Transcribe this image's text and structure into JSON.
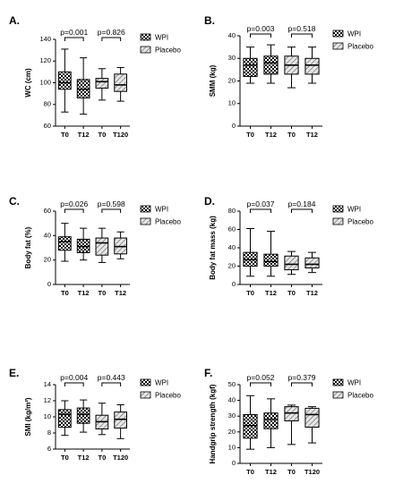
{
  "colors": {
    "wpi": "checker-pattern",
    "placebo": "diagonal-hatch-pattern",
    "axis": "#000000"
  },
  "legend": {
    "wpi": "WPI",
    "placebo": "Placebo"
  },
  "chart_data": [
    {
      "type": "box",
      "panel": "A.",
      "ylabel": "WC (cm)",
      "ylim": [
        60,
        140
      ],
      "yticks": [
        60,
        80,
        100,
        120,
        140
      ],
      "categories": [
        "T0",
        "T12",
        "T0",
        "T120"
      ],
      "groups": [
        "WPI",
        "WPI",
        "Placebo",
        "Placebo"
      ],
      "pvalues": [
        "p=0.001",
        "p=0.826"
      ],
      "boxes": [
        {
          "min": 73,
          "q1": 94,
          "median": 100,
          "q3": 110,
          "max": 131
        },
        {
          "min": 71,
          "q1": 86,
          "median": 94,
          "q3": 103,
          "max": 123
        },
        {
          "min": 84,
          "q1": 95,
          "median": 101,
          "q3": 104,
          "max": 113
        },
        {
          "min": 83,
          "q1": 92,
          "median": 98,
          "q3": 108,
          "max": 114
        }
      ]
    },
    {
      "type": "box",
      "panel": "B.",
      "ylabel": "SMM (kg)",
      "ylim": [
        0,
        40
      ],
      "yticks": [
        0,
        10,
        20,
        30,
        40
      ],
      "categories": [
        "T0",
        "T12",
        "T0",
        "T12"
      ],
      "groups": [
        "WPI",
        "WPI",
        "Placebo",
        "Placebo"
      ],
      "pvalues": [
        "p=0.003",
        "p=0.518"
      ],
      "boxes": [
        {
          "min": 19,
          "q1": 22,
          "median": 27,
          "q3": 30,
          "max": 35
        },
        {
          "min": 19,
          "q1": 23,
          "median": 28,
          "q3": 31,
          "max": 36
        },
        {
          "min": 17,
          "q1": 23,
          "median": 27,
          "q3": 31,
          "max": 35
        },
        {
          "min": 19,
          "q1": 23,
          "median": 27,
          "q3": 30,
          "max": 35
        }
      ]
    },
    {
      "type": "box",
      "panel": "C.",
      "ylabel": "Body fat (%)",
      "ylim": [
        0,
        60
      ],
      "yticks": [
        0,
        20,
        40,
        60
      ],
      "categories": [
        "T0",
        "T12",
        "T0",
        "T12"
      ],
      "groups": [
        "WPI",
        "WPI",
        "Placebo",
        "Placebo"
      ],
      "pvalues": [
        "p=0.026",
        "p=0.598"
      ],
      "boxes": [
        {
          "min": 19,
          "q1": 28,
          "median": 35,
          "q3": 39,
          "max": 50
        },
        {
          "min": 20,
          "q1": 26,
          "median": 31,
          "q3": 37,
          "max": 46
        },
        {
          "min": 18,
          "q1": 24,
          "median": 34,
          "q3": 38,
          "max": 46
        },
        {
          "min": 21,
          "q1": 25,
          "median": 31,
          "q3": 38,
          "max": 43
        }
      ]
    },
    {
      "type": "box",
      "panel": "D.",
      "ylabel": "Body fat mass (kg)",
      "ylim": [
        0,
        80
      ],
      "yticks": [
        0,
        20,
        40,
        60,
        80
      ],
      "categories": [
        "T0",
        "T12",
        "T0",
        "T12"
      ],
      "groups": [
        "WPI",
        "WPI",
        "Placebo",
        "Placebo"
      ],
      "pvalues": [
        "p=0.037",
        "p=0.184"
      ],
      "boxes": [
        {
          "min": 9,
          "q1": 20,
          "median": 27,
          "q3": 35,
          "max": 61
        },
        {
          "min": 9,
          "q1": 20,
          "median": 25,
          "q3": 33,
          "max": 58
        },
        {
          "min": 11,
          "q1": 16,
          "median": 22,
          "q3": 31,
          "max": 36
        },
        {
          "min": 13,
          "q1": 18,
          "median": 22,
          "q3": 29,
          "max": 35
        }
      ]
    },
    {
      "type": "box",
      "panel": "E.",
      "ylabel": "SMI (kg/m²)",
      "ylim": [
        6,
        14
      ],
      "yticks": [
        6,
        8,
        10,
        12,
        14
      ],
      "categories": [
        "T0",
        "T12",
        "T0",
        "T120"
      ],
      "groups": [
        "WPI",
        "WPI",
        "Placebo",
        "Placebo"
      ],
      "pvalues": [
        "p=0.004",
        "p=0.443"
      ],
      "boxes": [
        {
          "min": 7.7,
          "q1": 8.7,
          "median": 10.3,
          "q3": 10.9,
          "max": 12.0
        },
        {
          "min": 8.1,
          "q1": 9.2,
          "median": 10.3,
          "q3": 11.1,
          "max": 12.1
        },
        {
          "min": 7.8,
          "q1": 8.5,
          "median": 9.4,
          "q3": 10.2,
          "max": 11.7
        },
        {
          "min": 7.3,
          "q1": 8.6,
          "median": 9.7,
          "q3": 10.6,
          "max": 11.5
        }
      ]
    },
    {
      "type": "box",
      "panel": "F.",
      "ylabel": "Handgrip strength (kgf)",
      "ylim": [
        0,
        50
      ],
      "yticks": [
        0,
        10,
        20,
        30,
        40,
        50
      ],
      "categories": [
        "T0",
        "T12",
        "T0",
        "T120"
      ],
      "groups": [
        "WPI",
        "WPI",
        "Placebo",
        "Placebo"
      ],
      "pvalues": [
        "p=0.052",
        "p=0.379"
      ],
      "boxes": [
        {
          "min": 9,
          "q1": 16,
          "median": 24,
          "q3": 31,
          "max": 43
        },
        {
          "min": 10,
          "q1": 22,
          "median": 28,
          "q3": 32,
          "max": 41
        },
        {
          "min": 12,
          "q1": 27,
          "median": 32,
          "q3": 36,
          "max": 37
        },
        {
          "min": 13,
          "q1": 23,
          "median": 31,
          "q3": 35,
          "max": 36
        }
      ]
    }
  ]
}
